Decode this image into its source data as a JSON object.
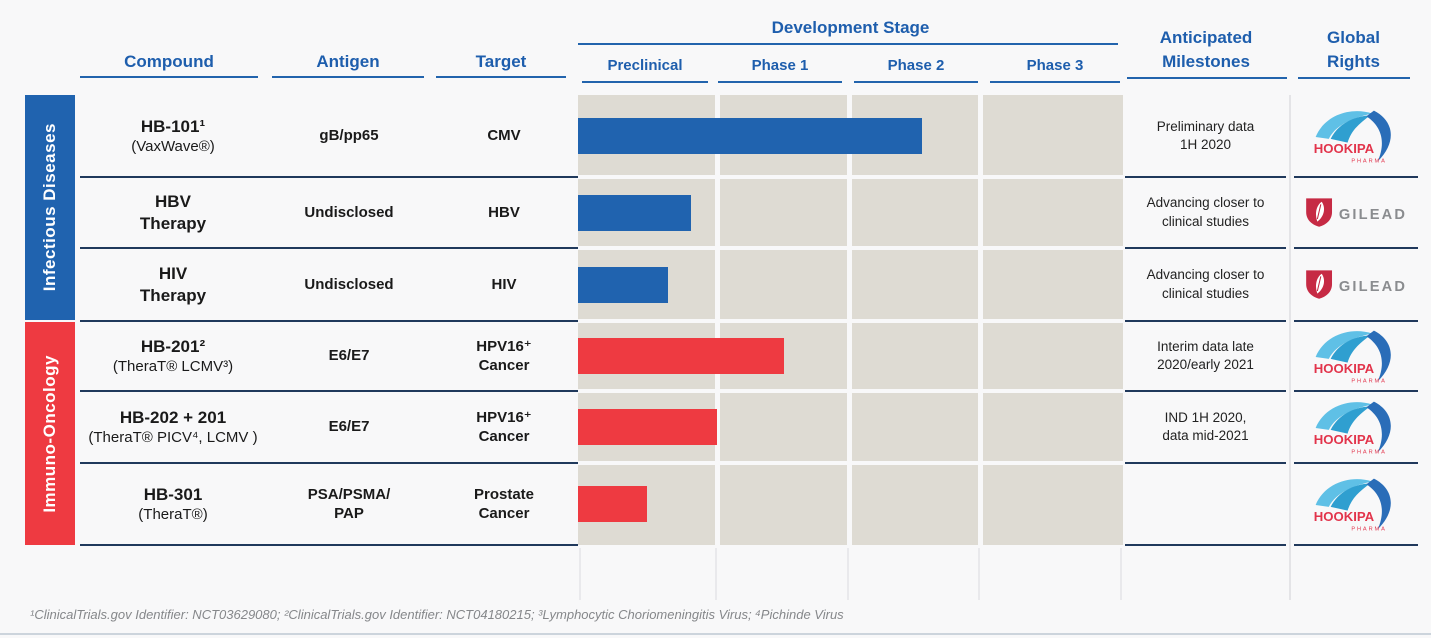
{
  "header": {
    "compound": "Compound",
    "antigen": "Antigen",
    "target": "Target",
    "development_stage": "Development Stage",
    "phases": [
      "Preclinical",
      "Phase 1",
      "Phase 2",
      "Phase 3"
    ],
    "anticipated_milestones": "Anticipated\nMilestones",
    "global_rights": "Global\nRights",
    "accent_blue": "#1e5ead"
  },
  "groups": [
    {
      "label": "Infectious Diseases",
      "color": "#2063af"
    },
    {
      "label": "Immuno-Oncology",
      "color": "#ee3a41"
    }
  ],
  "rows": [
    {
      "name": "HB-101¹",
      "sub": "(VaxWave®)",
      "antigen": "gB/pp65",
      "target": "CMV",
      "milestone": "Preliminary data\n1H 2020",
      "logo": "hookipa",
      "bar": {
        "color": "#2063af",
        "width_pct": 63.1,
        "stage_value": 2.55
      }
    },
    {
      "name": "HBV\nTherapy",
      "sub": "",
      "antigen": "Undisclosed",
      "target": "HBV",
      "milestone": "Advancing closer to\nclinical studies",
      "logo": "gilead",
      "bar": {
        "color": "#2063af",
        "width_pct": 20.8,
        "stage_value": 0.81
      }
    },
    {
      "name": "HIV\nTherapy",
      "sub": "",
      "antigen": "Undisclosed",
      "target": "HIV",
      "milestone": "Advancing closer to\nclinical studies",
      "logo": "gilead",
      "bar": {
        "color": "#2063af",
        "width_pct": 16.6,
        "stage_value": 0.65
      }
    },
    {
      "name": "HB-201²",
      "sub": "(TheraT® LCMV³)",
      "antigen": "E6/E7",
      "target": "HPV16⁺\nCancer",
      "milestone": "Interim data late\n2020/early 2021",
      "logo": "hookipa",
      "bar": {
        "color": "#ee3a41",
        "width_pct": 37.8,
        "stage_value": 1.5
      }
    },
    {
      "name": "HB-202 + 201",
      "sub": "(TheraT® PICV⁴, LCMV )",
      "antigen": "E6/E7",
      "target": "HPV16⁺\nCancer",
      "milestone": "IND 1H 2020,\ndata mid-2021",
      "logo": "hookipa",
      "bar": {
        "color": "#ee3a41",
        "width_pct": 25.5,
        "stage_value": 1.0
      }
    },
    {
      "name": "HB-301",
      "sub": "(TheraT®)",
      "antigen": "PSA/PSMA/\nPAP",
      "target": "Prostate\nCancer",
      "milestone": "",
      "logo": "hookipa",
      "bar": {
        "color": "#ee3a41",
        "width_pct": 12.6,
        "stage_value": 0.49
      }
    }
  ],
  "logos": {
    "hookipa": {
      "name": "HOOKIPA",
      "sub": "PHARMA",
      "red": "#e2344b",
      "light_blue": "#5fc0e6",
      "mid_blue": "#2f9fd0",
      "dark_blue": "#2a6db8"
    },
    "gilead": {
      "name": "GILEAD",
      "red": "#c62a44",
      "grey": "#8a8c8f"
    }
  },
  "footnote": "¹ClinicalTrials.gov Identifier: NCT03629080; ²ClinicalTrials.gov Identifier: NCT04180215; ³Lymphocytic Choriomeningitis Virus; ⁴Pichinde Virus",
  "chart_data": {
    "type": "bar",
    "orientation": "horizontal",
    "title": "Development Stage",
    "stage_axis": [
      "Preclinical",
      "Phase 1",
      "Phase 2",
      "Phase 3"
    ],
    "xlim": [
      0,
      4
    ],
    "grid": "4 stage columns, beige cells with white dividers",
    "categories": [
      "HB-101",
      "HBV Therapy",
      "HIV Therapy",
      "HB-201",
      "HB-202 + 201",
      "HB-301"
    ],
    "values": [
      2.55,
      0.81,
      0.65,
      1.5,
      1.0,
      0.49
    ],
    "value_meaning": "development stage reached (1 unit = one full stage column)",
    "colors": [
      "#2063af",
      "#2063af",
      "#2063af",
      "#ee3a41",
      "#ee3a41",
      "#ee3a41"
    ],
    "group_of_rows": [
      "Infectious Diseases",
      "Infectious Diseases",
      "Infectious Diseases",
      "Immuno-Oncology",
      "Immuno-Oncology",
      "Immuno-Oncology"
    ]
  }
}
